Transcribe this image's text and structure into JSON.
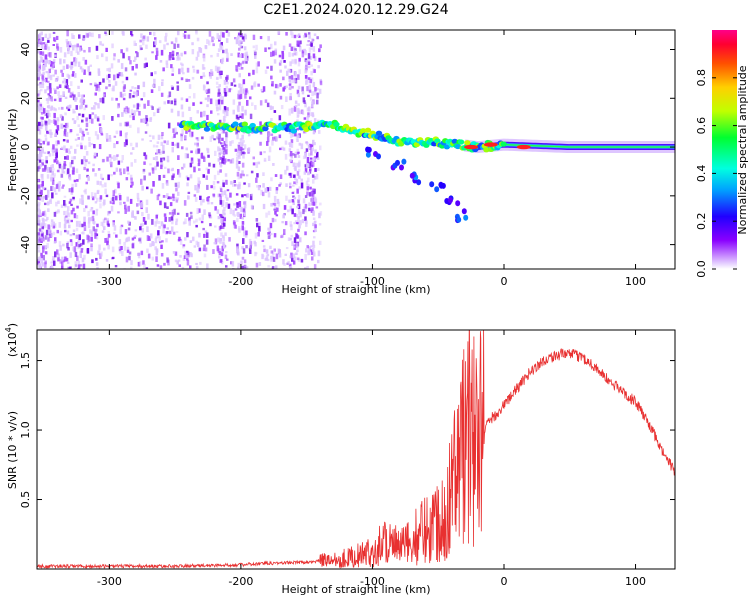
{
  "title": "C2E1.2024.020.12.29.G24",
  "chart_data": [
    {
      "type": "heatmap",
      "xlabel": "Height of straight line (km)",
      "ylabel": "Frequency (Hz)",
      "xlim": [
        -355,
        130
      ],
      "ylim": [
        -50,
        48
      ],
      "x_ticks": [
        "-300",
        "-200",
        "-100",
        "0",
        "100"
      ],
      "y_ticks": [
        "40",
        "20",
        "0",
        "-20",
        "-40"
      ],
      "colorbar": {
        "label": "Normalized spectral amplitude",
        "range": [
          0,
          1
        ],
        "ticks": [
          "0.0",
          "0.2",
          "0.4",
          "0.6",
          "0.8"
        ]
      },
      "features": {
        "main_trace": [
          {
            "x": -245,
            "y": 9
          },
          {
            "x": -200,
            "y": 8
          },
          {
            "x": -160,
            "y": 8
          },
          {
            "x": -130,
            "y": 9
          },
          {
            "x": -100,
            "y": 5
          },
          {
            "x": -75,
            "y": 2
          },
          {
            "x": -50,
            "y": 2
          },
          {
            "x": -35,
            "y": 1
          },
          {
            "x": -20,
            "y": 0
          },
          {
            "x": 0,
            "y": 1
          },
          {
            "x": 50,
            "y": 0
          },
          {
            "x": 130,
            "y": 0
          }
        ],
        "branch_trace": [
          {
            "x": -100,
            "y": -2
          },
          {
            "x": -80,
            "y": -7
          },
          {
            "x": -65,
            "y": -13
          },
          {
            "x": -50,
            "y": -17
          },
          {
            "x": -40,
            "y": -22
          },
          {
            "x": -33,
            "y": -28
          }
        ]
      }
    },
    {
      "type": "line",
      "xlabel": "Height of straight line (km)",
      "ylabel": "SNR (10 * v/v)",
      "multiplier_label": "(x10",
      "multiplier_exponent": "4",
      "xlim": [
        -355,
        130
      ],
      "ylim": [
        0,
        1.72
      ],
      "x_ticks": [
        "-300",
        "-200",
        "-100",
        "0",
        "100"
      ],
      "y_ticks": [
        "0.5",
        "1.0",
        "1.5"
      ],
      "color": "#e83030",
      "series": [
        {
          "x": [
            -355,
            -300,
            -250,
            -200,
            -180,
            -150,
            -120,
            -100,
            -90,
            -80,
            -70,
            -60,
            -50,
            -40,
            -30,
            -25,
            -20,
            -15,
            -10,
            -5,
            0,
            10,
            20,
            30,
            40,
            50,
            60,
            70,
            80,
            90,
            100,
            110,
            120,
            130
          ],
          "values": [
            0.02,
            0.02,
            0.02,
            0.03,
            0.04,
            0.05,
            0.08,
            0.12,
            0.22,
            0.15,
            0.2,
            0.3,
            0.35,
            0.55,
            0.9,
            1.1,
            0.9,
            1.0,
            1.08,
            1.12,
            1.18,
            1.3,
            1.42,
            1.5,
            1.54,
            1.55,
            1.52,
            1.45,
            1.35,
            1.28,
            1.2,
            1.05,
            0.85,
            0.7
          ]
        }
      ]
    }
  ]
}
